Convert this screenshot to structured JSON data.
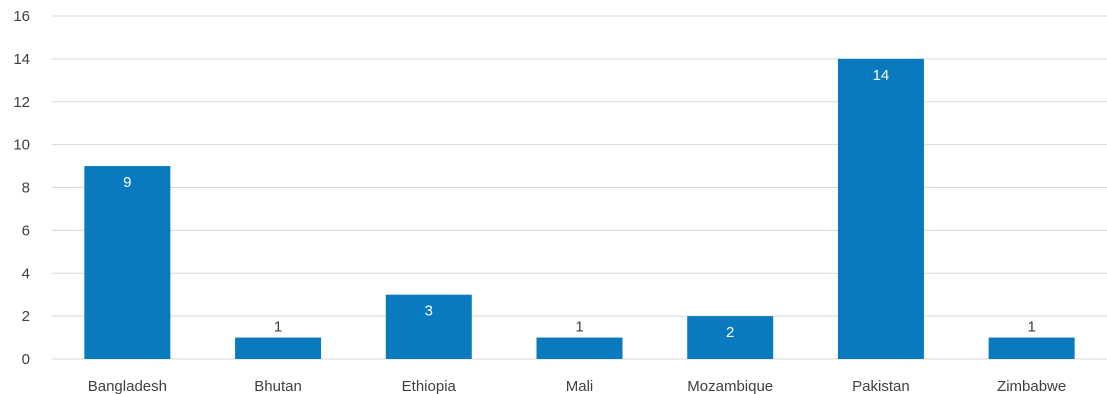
{
  "chart_data": {
    "type": "bar",
    "categories": [
      "Bangladesh",
      "Bhutan",
      "Ethiopia",
      "Mali",
      "Mozambique",
      "Pakistan",
      "Zimbabwe"
    ],
    "values": [
      9,
      1,
      3,
      1,
      2,
      14,
      1
    ],
    "data_labels": [
      "9",
      "1",
      "3",
      "1",
      "2",
      "14",
      "1"
    ],
    "yticks": [
      "0",
      "2",
      "4",
      "6",
      "8",
      "10",
      "12",
      "14",
      "16"
    ],
    "ylim": [
      0,
      16
    ],
    "grid": true,
    "legend": "none",
    "bar_color": "#0a7abf",
    "label_inside_color": "#ffffff",
    "label_outside_color": "#404040"
  }
}
